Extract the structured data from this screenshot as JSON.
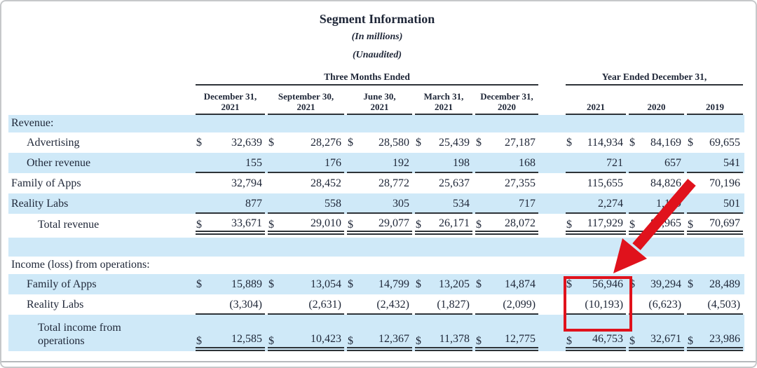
{
  "header": {
    "title": "Segment Information",
    "subtitle_millions": "(In millions)",
    "subtitle_unaudited": "(Unaudited)",
    "group_three_months": "Three Months Ended",
    "group_year_ended": "Year Ended December 31,",
    "columns": [
      {
        "line1": "December 31,",
        "line2": "2021"
      },
      {
        "line1": "September 30,",
        "line2": "2021"
      },
      {
        "line1": "June 30,",
        "line2": "2021"
      },
      {
        "line1": "March 31,",
        "line2": "2021"
      },
      {
        "line1": "December 31,",
        "line2": "2020"
      },
      {
        "line1": "2021",
        "line2": ""
      },
      {
        "line1": "2020",
        "line2": ""
      },
      {
        "line1": "2019",
        "line2": ""
      }
    ]
  },
  "table": {
    "rows": [
      {
        "type": "section",
        "label": "Revenue:",
        "bg": "blue"
      },
      {
        "type": "data",
        "label": "Advertising",
        "indent": 1,
        "dollar": true,
        "bg": "white",
        "values": [
          "32,639",
          "28,276",
          "28,580",
          "25,439",
          "27,187",
          "114,934",
          "84,169",
          "69,655"
        ]
      },
      {
        "type": "data",
        "label": "Other revenue",
        "indent": 1,
        "bg": "blue",
        "underline": "single",
        "values": [
          "155",
          "176",
          "192",
          "198",
          "168",
          "721",
          "657",
          "541"
        ]
      },
      {
        "type": "data",
        "label": "Family of Apps",
        "indent": 0,
        "bg": "white",
        "values": [
          "32,794",
          "28,452",
          "28,772",
          "25,637",
          "27,355",
          "115,655",
          "84,826",
          "70,196"
        ]
      },
      {
        "type": "data",
        "label": "Reality Labs",
        "indent": 0,
        "bg": "blue",
        "underline": "single",
        "values": [
          "877",
          "558",
          "305",
          "534",
          "717",
          "2,274",
          "1,139",
          "501"
        ]
      },
      {
        "type": "data",
        "label": "Total revenue",
        "indent": 2,
        "dollar": true,
        "bg": "white",
        "underline": "double",
        "values": [
          "33,671",
          "29,010",
          "29,077",
          "26,171",
          "28,072",
          "117,929",
          "85,965",
          "70,697"
        ]
      },
      {
        "type": "spacer",
        "bg": "blue"
      },
      {
        "type": "section",
        "label": "Income (loss) from operations:",
        "bg": "white"
      },
      {
        "type": "data",
        "label": "Family of Apps",
        "indent": 1,
        "dollar": true,
        "bg": "blue",
        "values": [
          "15,889",
          "13,054",
          "14,799",
          "13,205",
          "14,874",
          "56,946",
          "39,294",
          "28,489"
        ]
      },
      {
        "type": "data",
        "label": "Reality Labs",
        "indent": 1,
        "bg": "white",
        "underline": "single",
        "values": [
          "(3,304)",
          "(2,631)",
          "(2,432)",
          "(1,827)",
          "(2,099)",
          "(10,193)",
          "(6,623)",
          "(4,503)"
        ]
      },
      {
        "type": "data",
        "label": "Total income from operations",
        "indent": 2,
        "dollar": true,
        "bg": "blue",
        "underline": "double",
        "wrap": true,
        "values": [
          "12,585",
          "10,423",
          "12,367",
          "11,378",
          "12,775",
          "46,753",
          "32,671",
          "23,986"
        ]
      }
    ]
  },
  "annotations": {
    "highlight_color": "#e0121c",
    "highlighted_values": [
      "56,946",
      "(10,193)"
    ],
    "highlighted_column": "2021"
  }
}
